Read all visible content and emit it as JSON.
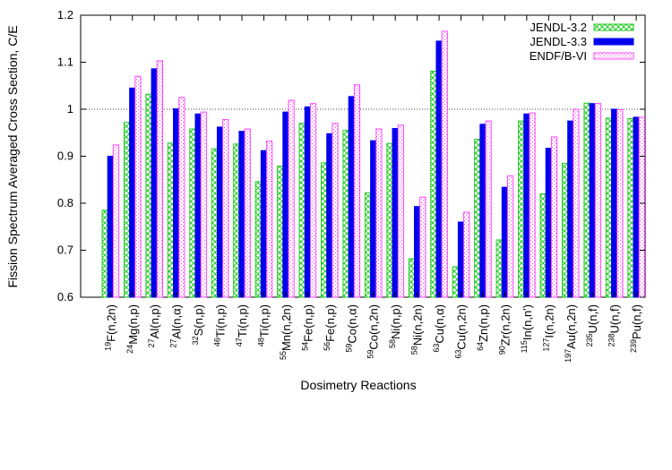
{
  "chart_data": {
    "type": "bar",
    "xlabel": "Dosimetry Reactions",
    "ylabel": "Fission Spectrum Averaged Cross Section, C/E",
    "ylim": [
      0.6,
      1.2
    ],
    "yticks": [
      "0.6",
      "0.7",
      "0.8",
      "0.9",
      "1",
      "1.1",
      "1.2"
    ],
    "reference_line": 1.0,
    "legend_position": "top-right",
    "categories": [
      {
        "mass": "19",
        "rest": "F(n,2n)"
      },
      {
        "mass": "24",
        "rest": "Mg(n,p)"
      },
      {
        "mass": "27",
        "rest": "Al(n,p)"
      },
      {
        "mass": "27",
        "rest": "Al(n,α)"
      },
      {
        "mass": "32",
        "rest": "S(n,p)"
      },
      {
        "mass": "46",
        "rest": "Ti(n,p)"
      },
      {
        "mass": "47",
        "rest": "Ti(n,p)"
      },
      {
        "mass": "48",
        "rest": "Ti(n,p)"
      },
      {
        "mass": "55",
        "rest": "Mn(n,2n)"
      },
      {
        "mass": "54",
        "rest": "Fe(n,p)"
      },
      {
        "mass": "56",
        "rest": "Fe(n,p)"
      },
      {
        "mass": "59",
        "rest": "Co(n,α)"
      },
      {
        "mass": "59",
        "rest": "Co(n,2n)"
      },
      {
        "mass": "58",
        "rest": "Ni(n,p)"
      },
      {
        "mass": "58",
        "rest": "Ni(n,2n)"
      },
      {
        "mass": "63",
        "rest": "Cu(n,α)"
      },
      {
        "mass": "63",
        "rest": "Cu(n,2n)"
      },
      {
        "mass": "64",
        "rest": "Zn(n,p)"
      },
      {
        "mass": "90",
        "rest": "Zr(n,2n)"
      },
      {
        "mass": "115",
        "rest": "In(n,n')"
      },
      {
        "mass": "127",
        "rest": "I(n,2n)"
      },
      {
        "mass": "197",
        "rest": "Au(n,2n)"
      },
      {
        "mass": "235",
        "rest": "U(n,f)"
      },
      {
        "mass": "238",
        "rest": "U(n,f)"
      },
      {
        "mass": "239",
        "rest": "Pu(n,f)"
      }
    ],
    "series": [
      {
        "name": "JENDL-3.2",
        "color": "#22cc22",
        "style": "hatched",
        "values": [
          0.785,
          0.972,
          1.032,
          0.928,
          0.958,
          0.916,
          0.926,
          0.846,
          0.879,
          0.97,
          0.886,
          0.955,
          0.822,
          0.927,
          0.682,
          1.081,
          0.665,
          0.936,
          0.722,
          0.975,
          0.82,
          0.885,
          1.013,
          0.981,
          0.98
        ]
      },
      {
        "name": "JENDL-3.3",
        "color": "#0000ee",
        "style": "solid",
        "values": [
          0.9,
          1.045,
          1.086,
          1.001,
          0.99,
          0.962,
          0.953,
          0.912,
          0.994,
          1.005,
          0.948,
          1.027,
          0.933,
          0.959,
          0.793,
          1.145,
          0.76,
          0.968,
          0.834,
          0.99,
          0.917,
          0.975,
          1.012,
          1.0,
          0.983
        ]
      },
      {
        "name": "ENDF/B-VI",
        "color": "#ff44ff",
        "style": "dotted",
        "values": [
          0.924,
          1.07,
          1.103,
          1.025,
          0.994,
          0.978,
          0.958,
          0.932,
          1.019,
          1.012,
          0.97,
          1.052,
          0.958,
          0.966,
          0.813,
          1.166,
          0.781,
          0.975,
          0.858,
          0.992,
          0.941,
          1.0,
          1.012,
          0.999,
          0.983
        ]
      }
    ]
  }
}
